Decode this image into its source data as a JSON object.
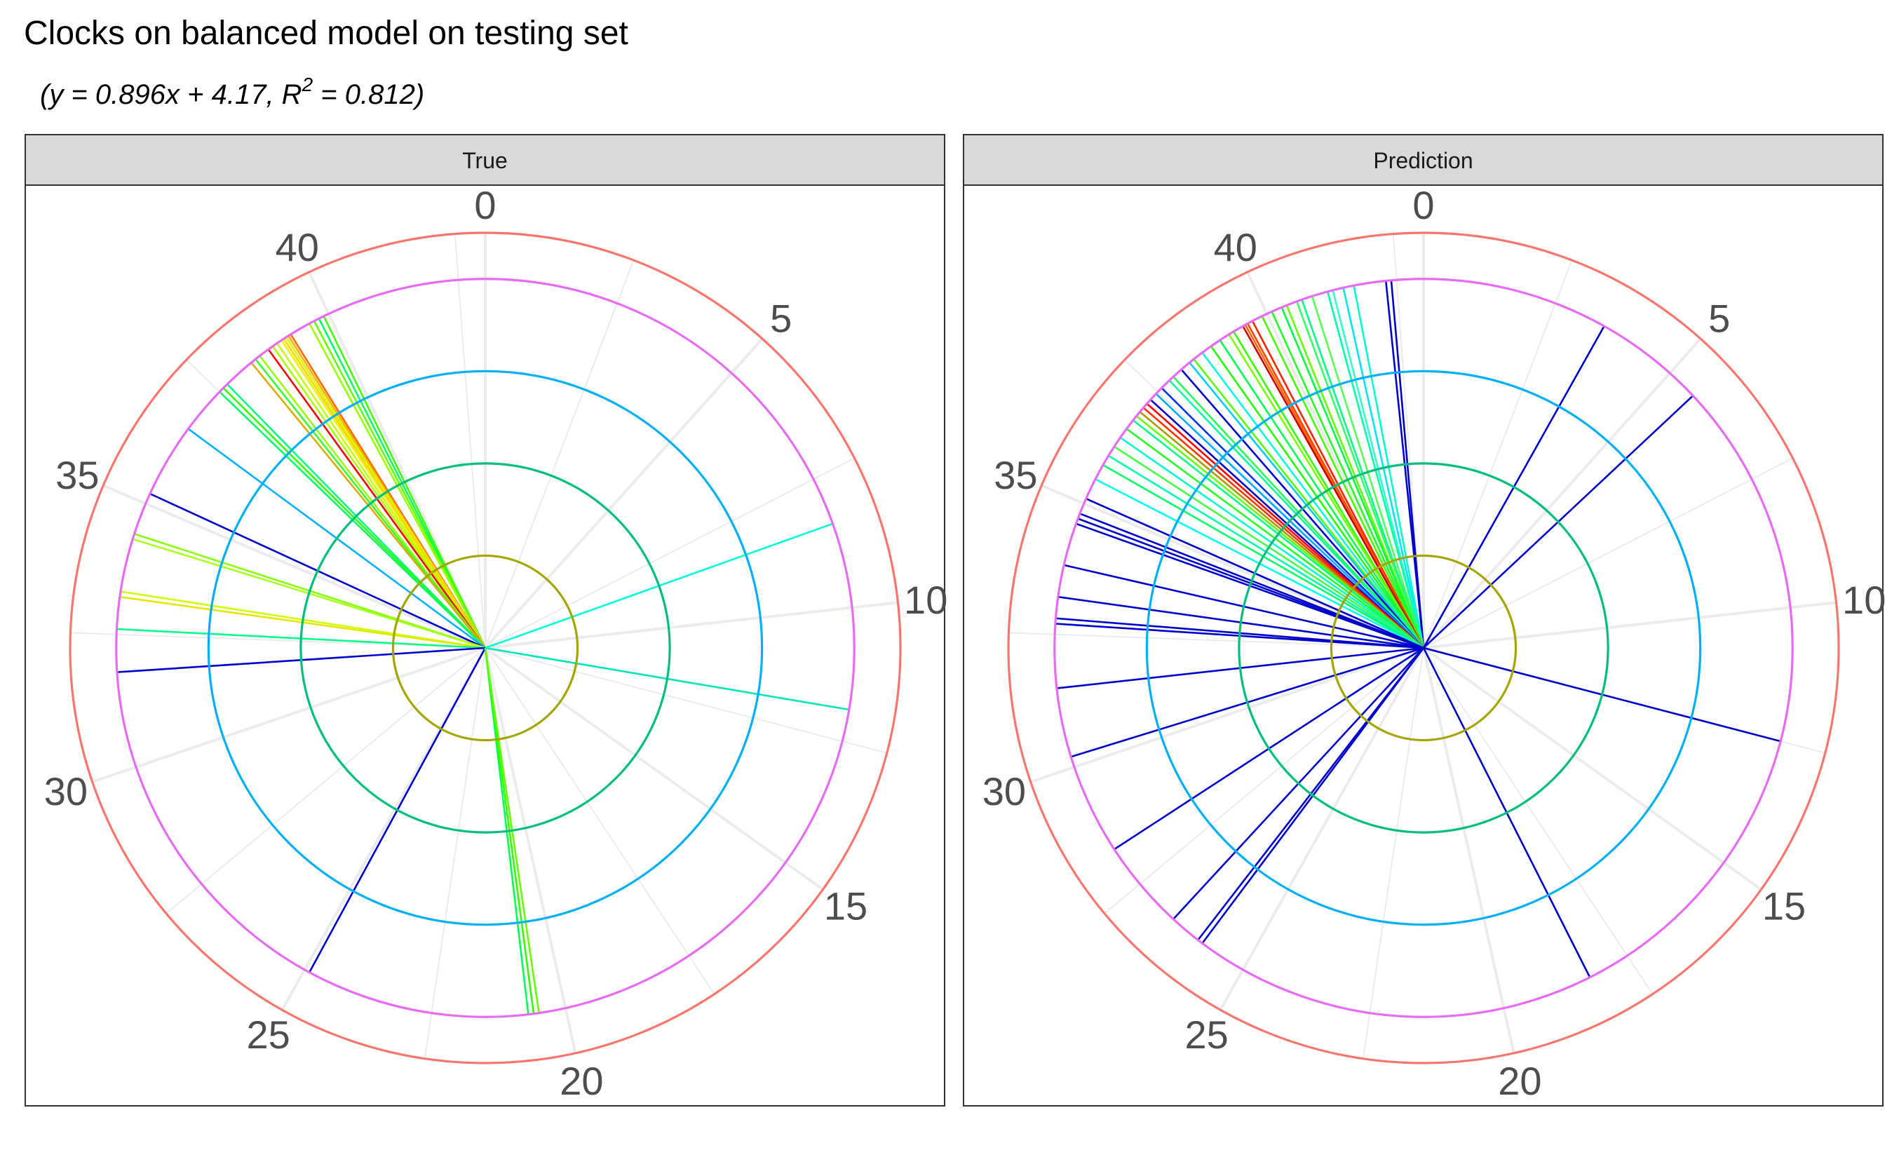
{
  "title": "Clocks on balanced model on testing set",
  "subtitle_main": "(y = 0.896x + 4.17, R",
  "subtitle_sup": "2",
  "subtitle_rest": " = 0.812)",
  "chart_data": {
    "type": "polar",
    "theta_range": [
      0,
      43
    ],
    "theta_ticks": [
      0,
      5,
      10,
      15,
      20,
      25,
      30,
      35,
      40
    ],
    "theta_minor_ticks": [
      2.5,
      7.5,
      12.5,
      17.5,
      22.5,
      27.5,
      32.5,
      37.5,
      42.5
    ],
    "rings": [
      {
        "label": "ring-1",
        "value": 1,
        "color": "#A3A500"
      },
      {
        "label": "ring-2",
        "value": 2,
        "color": "#00BF7D"
      },
      {
        "label": "ring-3",
        "value": 3,
        "color": "#00B0F6"
      },
      {
        "label": "ring-4",
        "value": 4,
        "color": "#E76BF3"
      },
      {
        "label": "ring-5",
        "value": 4.5,
        "color": "#F8766D"
      }
    ],
    "panels": [
      {
        "label": "True",
        "spokes": [
          {
            "t": 39.8,
            "c": "#00ff66"
          },
          {
            "t": 39.9,
            "c": "#40ff00"
          },
          {
            "t": 39.7,
            "c": "#66ff00"
          },
          {
            "t": 39.6,
            "c": "#99ff00"
          },
          {
            "t": 39.2,
            "c": "#ff6a00"
          },
          {
            "t": 39.1,
            "c": "#ff8c00"
          },
          {
            "t": 39.0,
            "c": "#ff2a00"
          },
          {
            "t": 39.15,
            "c": "#ffb000"
          },
          {
            "t": 39.1,
            "c": "#d4ff00"
          },
          {
            "t": 39.0,
            "c": "#e6ff00"
          },
          {
            "t": 38.9,
            "c": "#c8ff00"
          },
          {
            "t": 39.05,
            "c": "#ffd400"
          },
          {
            "t": 38.8,
            "c": "#aaff00"
          },
          {
            "t": 38.7,
            "c": "#ff0000"
          },
          {
            "t": 38.5,
            "c": "#99ff00"
          },
          {
            "t": 38.4,
            "c": "#33ff33"
          },
          {
            "t": 38.3,
            "c": "#ddaa00"
          },
          {
            "t": 37.7,
            "c": "#00ff80"
          },
          {
            "t": 37.6,
            "c": "#33ff00"
          },
          {
            "t": 37.5,
            "c": "#00ff66"
          },
          {
            "t": 36.6,
            "c": "#00b0ff"
          },
          {
            "t": 35.2,
            "c": "#0000cc"
          },
          {
            "t": 34.4,
            "c": "#88ff00"
          },
          {
            "t": 34.3,
            "c": "#aaff22"
          },
          {
            "t": 33.3,
            "c": "#ccff00"
          },
          {
            "t": 33.2,
            "c": "#e6e600"
          },
          {
            "t": 32.6,
            "c": "#00ff88"
          },
          {
            "t": 31.8,
            "c": "#0000cc"
          },
          {
            "t": 24.9,
            "c": "#0000cc"
          },
          {
            "t": 20.7,
            "c": "#00ff55"
          },
          {
            "t": 20.6,
            "c": "#33ff00"
          },
          {
            "t": 20.5,
            "c": "#66ff00"
          },
          {
            "t": 11.9,
            "c": "#00e6b8"
          },
          {
            "t": 8.4,
            "c": "#00ffd5"
          }
        ]
      },
      {
        "label": "Prediction",
        "spokes": [
          {
            "t": 42.4,
            "c": "#0000cc"
          },
          {
            "t": 42.3,
            "c": "#0000cc"
          },
          {
            "t": 41.7,
            "c": "#00ffcc"
          },
          {
            "t": 41.5,
            "c": "#00e5ff"
          },
          {
            "t": 41.3,
            "c": "#33ffcc"
          },
          {
            "t": 41.2,
            "c": "#00ffaa"
          },
          {
            "t": 40.9,
            "c": "#55ff55"
          },
          {
            "t": 40.7,
            "c": "#00ff88"
          },
          {
            "t": 40.6,
            "c": "#33ff66"
          },
          {
            "t": 40.4,
            "c": "#66ff00"
          },
          {
            "t": 40.3,
            "c": "#00ff44"
          },
          {
            "t": 40.1,
            "c": "#22ff22"
          },
          {
            "t": 39.9,
            "c": "#44ff00"
          },
          {
            "t": 39.7,
            "c": "#ff2200"
          },
          {
            "t": 39.6,
            "c": "#ff4400"
          },
          {
            "t": 39.55,
            "c": "#ff6600"
          },
          {
            "t": 39.5,
            "c": "#cc0000"
          },
          {
            "t": 39.3,
            "c": "#33ff00"
          },
          {
            "t": 39.2,
            "c": "#77ff00"
          },
          {
            "t": 39.0,
            "c": "#00ff55"
          },
          {
            "t": 38.8,
            "c": "#22ff00"
          },
          {
            "t": 38.6,
            "c": "#00ffdd"
          },
          {
            "t": 38.4,
            "c": "#55ff00"
          },
          {
            "t": 38.3,
            "c": "#00ccff"
          },
          {
            "t": 38.1,
            "c": "#0000cc"
          },
          {
            "t": 37.9,
            "c": "#22ff55"
          },
          {
            "t": 37.8,
            "c": "#00ff99"
          },
          {
            "t": 37.6,
            "c": "#0033ff"
          },
          {
            "t": 37.45,
            "c": "#00aaff"
          },
          {
            "t": 37.3,
            "c": "#0000cc"
          },
          {
            "t": 37.2,
            "c": "#ff0000"
          },
          {
            "t": 37.1,
            "c": "#ff3300"
          },
          {
            "t": 37.0,
            "c": "#aa9900"
          },
          {
            "t": 36.9,
            "c": "#66ff00"
          },
          {
            "t": 36.8,
            "c": "#00ff88"
          },
          {
            "t": 36.6,
            "c": "#22ff22"
          },
          {
            "t": 36.4,
            "c": "#00ffcc"
          },
          {
            "t": 36.2,
            "c": "#44ff44"
          },
          {
            "t": 36.0,
            "c": "#00ffaa"
          },
          {
            "t": 35.8,
            "c": "#00ff66"
          },
          {
            "t": 35.5,
            "c": "#00ffee"
          },
          {
            "t": 35.1,
            "c": "#0000cc"
          },
          {
            "t": 34.8,
            "c": "#0000cc"
          },
          {
            "t": 34.7,
            "c": "#0000cc"
          },
          {
            "t": 34.6,
            "c": "#0000cc"
          },
          {
            "t": 33.8,
            "c": "#0000cc"
          },
          {
            "t": 33.2,
            "c": "#0000cc"
          },
          {
            "t": 32.8,
            "c": "#0000cc"
          },
          {
            "t": 32.7,
            "c": "#0000cc"
          },
          {
            "t": 31.5,
            "c": "#0000cc"
          },
          {
            "t": 30.2,
            "c": "#0000cc"
          },
          {
            "t": 28.3,
            "c": "#0000cc"
          },
          {
            "t": 26.6,
            "c": "#0000cc"
          },
          {
            "t": 26.0,
            "c": "#0000cc"
          },
          {
            "t": 25.9,
            "c": "#0000cc"
          },
          {
            "t": 18.3,
            "c": "#0000cc"
          },
          {
            "t": 12.5,
            "c": "#0000cc"
          },
          {
            "t": 5.6,
            "c": "#0000cc"
          },
          {
            "t": 3.5,
            "c": "#0000cc"
          }
        ]
      }
    ]
  }
}
